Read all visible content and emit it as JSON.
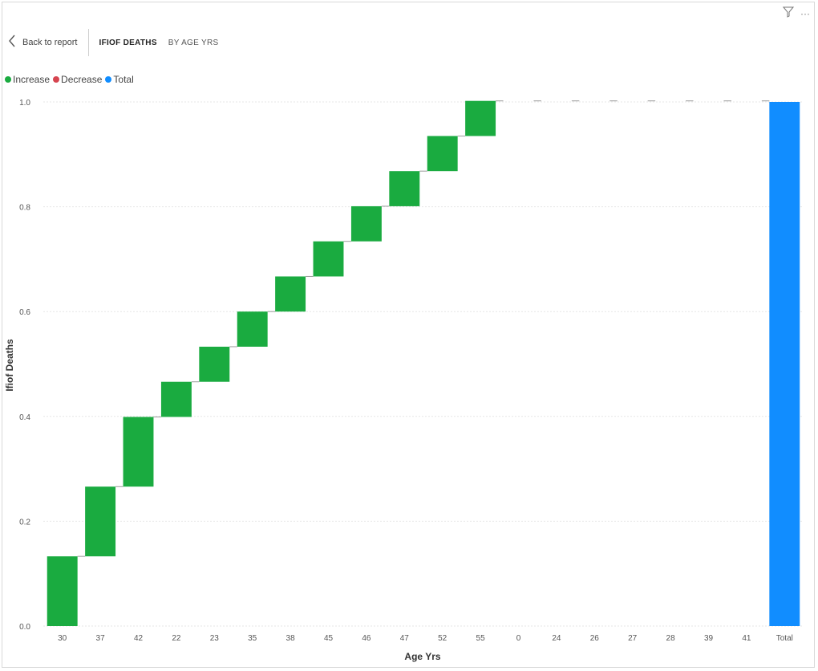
{
  "header": {
    "back_label": "Back to report",
    "crumb_title": "IFIOF DEATHS",
    "crumb_sub": "BY AGE YRS"
  },
  "toolbar": {
    "filter_icon": "filter-icon",
    "more_icon": "more-options-icon",
    "more_glyph": "···"
  },
  "legend": [
    {
      "label": "Increase",
      "color": "#1aab40"
    },
    {
      "label": "Decrease",
      "color": "#d64550"
    },
    {
      "label": "Total",
      "color": "#118dff"
    }
  ],
  "chart_data": {
    "type": "waterfall",
    "xlabel": "Age Yrs",
    "ylabel": "Ifiof Deaths",
    "ylim": [
      0,
      1.0
    ],
    "yticks": [
      "0.0",
      "0.2",
      "0.4",
      "0.6",
      "0.8",
      "1.0"
    ],
    "categories": [
      "30",
      "37",
      "42",
      "22",
      "23",
      "35",
      "38",
      "45",
      "46",
      "47",
      "52",
      "55",
      "0",
      "24",
      "26",
      "27",
      "28",
      "39",
      "41",
      "Total"
    ],
    "values": [
      0.133,
      0.133,
      0.133,
      0.067,
      0.067,
      0.067,
      0.067,
      0.067,
      0.067,
      0.067,
      0.067,
      0.067,
      0,
      0,
      0,
      0,
      0,
      0,
      0,
      1.0
    ],
    "total_index": 19,
    "colors": {
      "increase": "#1aab40",
      "decrease": "#d64550",
      "total": "#118dff"
    },
    "grid": true,
    "legend_position": "top-left"
  }
}
